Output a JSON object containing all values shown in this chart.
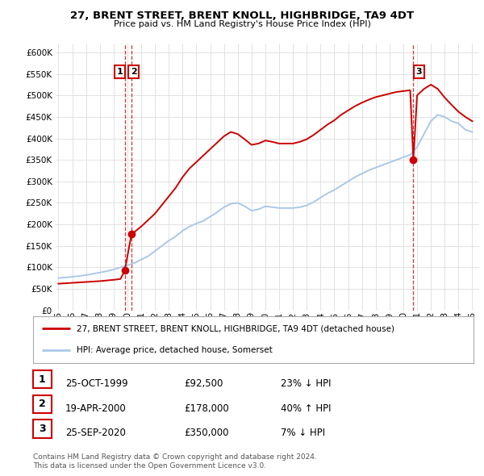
{
  "title": "27, BRENT STREET, BRENT KNOLL, HIGHBRIDGE, TA9 4DT",
  "subtitle": "Price paid vs. HM Land Registry's House Price Index (HPI)",
  "legend_line1": "27, BRENT STREET, BRENT KNOLL, HIGHBRIDGE, TA9 4DT (detached house)",
  "legend_line2": "HPI: Average price, detached house, Somerset",
  "footer1": "Contains HM Land Registry data © Crown copyright and database right 2024.",
  "footer2": "This data is licensed under the Open Government Licence v3.0.",
  "sale_color": "#cc0000",
  "hpi_color": "#aac8e8",
  "background_color": "#ffffff",
  "grid_color": "#dddddd",
  "ylim": [
    0,
    620000
  ],
  "yticks": [
    0,
    50000,
    100000,
    150000,
    200000,
    250000,
    300000,
    350000,
    400000,
    450000,
    500000,
    550000,
    600000
  ],
  "sales": [
    {
      "date_num": 1999.81,
      "price": 92500,
      "label": "1"
    },
    {
      "date_num": 2000.3,
      "price": 178000,
      "label": "2"
    },
    {
      "date_num": 2020.73,
      "price": 350000,
      "label": "3"
    }
  ],
  "table_rows": [
    {
      "num": "1",
      "date": "25-OCT-1999",
      "price": "£92,500",
      "hpi": "23% ↓ HPI"
    },
    {
      "num": "2",
      "date": "19-APR-2000",
      "price": "£178,000",
      "hpi": "40% ↑ HPI"
    },
    {
      "num": "3",
      "date": "25-SEP-2020",
      "price": "£350,000",
      "hpi": "7% ↓ HPI"
    }
  ],
  "hpi_data": [
    [
      1995.0,
      75000
    ],
    [
      1995.5,
      76500
    ],
    [
      1996.0,
      78000
    ],
    [
      1996.5,
      80000
    ],
    [
      1997.0,
      82000
    ],
    [
      1997.5,
      85000
    ],
    [
      1998.0,
      88000
    ],
    [
      1998.5,
      91000
    ],
    [
      1999.0,
      95000
    ],
    [
      1999.5,
      100000
    ],
    [
      2000.0,
      105000
    ],
    [
      2000.5,
      110000
    ],
    [
      2001.0,
      118000
    ],
    [
      2001.5,
      126000
    ],
    [
      2002.0,
      138000
    ],
    [
      2002.5,
      150000
    ],
    [
      2003.0,
      162000
    ],
    [
      2003.5,
      172000
    ],
    [
      2004.0,
      185000
    ],
    [
      2004.5,
      195000
    ],
    [
      2005.0,
      202000
    ],
    [
      2005.5,
      208000
    ],
    [
      2006.0,
      218000
    ],
    [
      2006.5,
      228000
    ],
    [
      2007.0,
      240000
    ],
    [
      2007.5,
      248000
    ],
    [
      2008.0,
      250000
    ],
    [
      2008.5,
      242000
    ],
    [
      2009.0,
      232000
    ],
    [
      2009.5,
      235000
    ],
    [
      2010.0,
      242000
    ],
    [
      2010.5,
      240000
    ],
    [
      2011.0,
      238000
    ],
    [
      2011.5,
      238000
    ],
    [
      2012.0,
      238000
    ],
    [
      2012.5,
      240000
    ],
    [
      2013.0,
      244000
    ],
    [
      2013.5,
      252000
    ],
    [
      2014.0,
      262000
    ],
    [
      2014.5,
      272000
    ],
    [
      2015.0,
      280000
    ],
    [
      2015.5,
      290000
    ],
    [
      2016.0,
      300000
    ],
    [
      2016.5,
      310000
    ],
    [
      2017.0,
      318000
    ],
    [
      2017.5,
      326000
    ],
    [
      2018.0,
      332000
    ],
    [
      2018.5,
      338000
    ],
    [
      2019.0,
      344000
    ],
    [
      2019.5,
      350000
    ],
    [
      2020.0,
      356000
    ],
    [
      2020.5,
      362000
    ],
    [
      2021.0,
      380000
    ],
    [
      2021.5,
      410000
    ],
    [
      2022.0,
      440000
    ],
    [
      2022.5,
      455000
    ],
    [
      2023.0,
      450000
    ],
    [
      2023.5,
      440000
    ],
    [
      2024.0,
      435000
    ],
    [
      2024.5,
      420000
    ],
    [
      2025.0,
      415000
    ]
  ],
  "pp_data": [
    [
      1995.0,
      62000
    ],
    [
      1995.5,
      63000
    ],
    [
      1996.0,
      64000
    ],
    [
      1996.5,
      65000
    ],
    [
      1997.0,
      66000
    ],
    [
      1997.5,
      67000
    ],
    [
      1998.0,
      68000
    ],
    [
      1998.5,
      69500
    ],
    [
      1999.0,
      71000
    ],
    [
      1999.5,
      73000
    ],
    [
      1999.81,
      92500
    ],
    [
      2000.3,
      178000
    ],
    [
      2000.5,
      182000
    ],
    [
      2001.0,
      195000
    ],
    [
      2001.5,
      210000
    ],
    [
      2002.0,
      225000
    ],
    [
      2002.5,
      245000
    ],
    [
      2003.0,
      265000
    ],
    [
      2003.5,
      285000
    ],
    [
      2004.0,
      310000
    ],
    [
      2004.5,
      330000
    ],
    [
      2005.0,
      345000
    ],
    [
      2005.5,
      360000
    ],
    [
      2006.0,
      375000
    ],
    [
      2006.5,
      390000
    ],
    [
      2007.0,
      405000
    ],
    [
      2007.5,
      415000
    ],
    [
      2008.0,
      410000
    ],
    [
      2008.5,
      398000
    ],
    [
      2009.0,
      385000
    ],
    [
      2009.5,
      388000
    ],
    [
      2010.0,
      395000
    ],
    [
      2010.5,
      392000
    ],
    [
      2011.0,
      388000
    ],
    [
      2011.5,
      388000
    ],
    [
      2012.0,
      388000
    ],
    [
      2012.5,
      392000
    ],
    [
      2013.0,
      398000
    ],
    [
      2013.5,
      408000
    ],
    [
      2014.0,
      420000
    ],
    [
      2014.5,
      432000
    ],
    [
      2015.0,
      442000
    ],
    [
      2015.5,
      455000
    ],
    [
      2016.0,
      465000
    ],
    [
      2016.5,
      475000
    ],
    [
      2017.0,
      483000
    ],
    [
      2017.5,
      490000
    ],
    [
      2018.0,
      496000
    ],
    [
      2018.5,
      500000
    ],
    [
      2019.0,
      504000
    ],
    [
      2019.5,
      508000
    ],
    [
      2020.0,
      510000
    ],
    [
      2020.5,
      512000
    ],
    [
      2020.73,
      350000
    ],
    [
      2021.0,
      500000
    ],
    [
      2021.5,
      515000
    ],
    [
      2022.0,
      525000
    ],
    [
      2022.5,
      515000
    ],
    [
      2023.0,
      495000
    ],
    [
      2023.5,
      478000
    ],
    [
      2024.0,
      462000
    ],
    [
      2024.5,
      450000
    ],
    [
      2025.0,
      440000
    ]
  ],
  "xmin": 1994.8,
  "xmax": 2025.5,
  "xticks": [
    1995,
    1996,
    1997,
    1998,
    1999,
    2000,
    2001,
    2002,
    2003,
    2004,
    2005,
    2006,
    2007,
    2008,
    2009,
    2010,
    2011,
    2012,
    2013,
    2014,
    2015,
    2016,
    2017,
    2018,
    2019,
    2020,
    2021,
    2022,
    2023,
    2024,
    2025
  ]
}
